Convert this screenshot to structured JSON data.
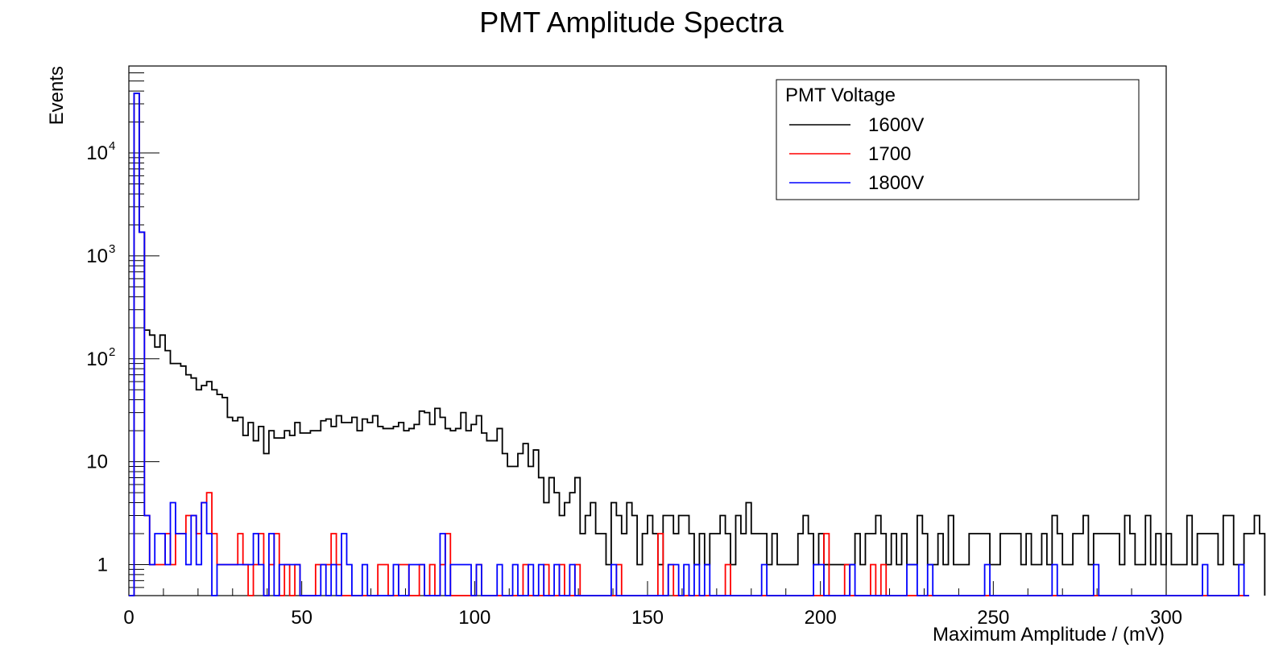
{
  "chart_data": {
    "type": "histogram",
    "title": "PMT Amplitude Spectra",
    "xlabel": "Maximum Amplitude / (mV)",
    "ylabel": "Events",
    "xlim": [
      0,
      300
    ],
    "ylim": [
      0.5,
      70000
    ],
    "yscale": "log",
    "bin_width": 1.5,
    "x_ticks": [
      "0",
      "50",
      "100",
      "150",
      "200",
      "250",
      "300"
    ],
    "y_ticks": [
      {
        "value": 1,
        "base": "1",
        "exp": ""
      },
      {
        "value": 10,
        "base": "10",
        "exp": ""
      },
      {
        "value": 100,
        "base": "10",
        "exp": "2"
      },
      {
        "value": 1000,
        "base": "10",
        "exp": "3"
      },
      {
        "value": 10000,
        "base": "10",
        "exp": "4"
      }
    ],
    "grid": false,
    "legend": {
      "title": "PMT Voltage",
      "placement": "top-right",
      "entries": [
        "1600V",
        "1700",
        "1800V"
      ]
    },
    "series": [
      {
        "name": "1600V",
        "color": "#000000",
        "values": [
          0,
          38000,
          1700,
          190,
          170,
          130,
          170,
          120,
          90,
          90,
          85,
          70,
          65,
          50,
          55,
          60,
          50,
          45,
          42,
          27,
          25,
          27,
          18,
          24,
          16,
          22,
          12,
          20,
          17,
          17,
          20,
          18,
          24,
          19,
          19,
          20,
          20,
          25,
          26,
          22,
          28,
          24,
          24,
          27,
          20,
          26,
          24,
          28,
          22,
          21,
          21,
          22,
          24,
          20,
          21,
          23,
          31,
          30,
          23,
          33,
          27,
          21,
          20,
          21,
          30,
          20,
          23,
          28,
          19,
          16,
          16,
          21,
          12,
          9,
          9,
          12,
          15,
          9,
          13,
          7,
          4,
          7,
          5,
          3,
          4,
          5,
          7,
          2,
          3,
          4,
          2,
          2,
          1,
          4,
          3,
          2,
          4,
          3,
          1,
          2,
          3,
          2,
          1,
          3,
          3,
          2,
          3,
          3,
          2,
          1,
          2,
          1,
          2,
          2,
          3,
          2,
          1,
          3,
          2,
          4,
          2,
          2,
          2,
          1,
          2,
          1,
          1,
          1,
          1,
          2,
          3,
          2,
          1,
          2,
          1,
          1,
          1,
          1,
          1,
          1,
          2,
          1,
          2,
          2,
          3,
          2,
          1,
          2,
          1,
          2,
          1,
          1,
          3,
          2,
          1,
          1,
          2,
          1,
          3,
          1,
          1,
          1,
          2,
          2,
          2,
          2,
          1,
          1,
          2,
          2,
          2,
          2,
          1,
          2,
          1,
          1,
          2,
          1,
          3,
          2,
          1,
          1,
          2,
          2,
          3,
          1,
          2,
          2,
          2,
          2,
          2,
          1,
          3,
          2,
          1,
          1,
          3,
          1,
          2,
          1,
          2,
          1,
          1,
          1,
          3,
          1,
          2,
          2,
          2,
          2,
          1,
          3,
          3,
          1,
          1,
          2,
          2,
          3,
          2
        ]
      },
      {
        "name": "1700",
        "color": "#ff0000",
        "values": [
          0,
          38000,
          1700,
          3,
          1,
          1,
          1,
          2,
          1,
          2,
          2,
          3,
          3,
          2,
          4,
          5,
          2,
          1,
          1,
          1,
          1,
          2,
          1,
          0,
          1,
          2,
          0,
          1,
          2,
          0,
          1,
          0,
          1,
          0,
          0,
          0,
          1,
          1,
          1,
          2,
          1,
          0,
          0,
          0,
          0,
          0,
          0,
          0,
          1,
          1,
          0,
          0,
          1,
          1,
          0,
          0,
          1,
          0,
          1,
          0,
          1,
          2,
          0,
          0,
          0,
          0,
          0,
          1,
          0,
          0,
          0,
          0,
          0,
          0,
          0,
          0,
          1,
          0,
          0,
          0,
          1,
          0,
          0,
          1,
          0,
          0,
          1,
          0,
          0,
          0,
          0,
          0,
          0,
          0,
          1,
          0,
          0,
          0,
          0,
          0,
          0,
          0,
          2,
          0,
          1,
          0,
          0,
          0,
          0,
          0,
          0,
          0,
          0,
          0,
          0,
          1,
          0,
          0,
          0,
          0,
          0,
          0,
          0,
          0,
          0,
          0,
          0,
          0,
          0,
          0,
          0,
          0,
          0,
          0,
          2,
          0,
          0,
          0,
          1,
          0,
          0,
          0,
          0,
          1,
          0,
          1,
          0,
          0,
          0,
          0,
          0,
          0,
          0,
          0,
          0,
          0,
          0,
          0,
          0,
          0,
          0,
          0,
          0,
          0,
          0,
          0,
          0,
          0,
          0,
          0,
          0,
          0,
          0,
          0,
          0,
          0,
          0,
          0,
          0,
          0,
          0,
          0,
          0,
          0,
          0,
          0,
          0,
          0,
          0,
          0,
          0,
          0,
          0,
          0,
          0,
          0,
          0,
          0,
          0,
          0,
          0,
          0,
          0,
          0,
          0,
          0,
          0,
          0,
          0,
          0,
          0,
          0,
          0,
          0,
          0,
          0
        ]
      },
      {
        "name": "1800V",
        "color": "#0000ff",
        "values": [
          0,
          38000,
          1700,
          3,
          1,
          2,
          2,
          1,
          4,
          2,
          2,
          1,
          3,
          1,
          4,
          2,
          0,
          1,
          1,
          1,
          1,
          1,
          1,
          1,
          2,
          1,
          0,
          2,
          0,
          1,
          1,
          1,
          1,
          0,
          0,
          0,
          0,
          1,
          0,
          1,
          0,
          2,
          1,
          0,
          0,
          1,
          0,
          0,
          0,
          0,
          0,
          1,
          0,
          0,
          1,
          1,
          1,
          0,
          0,
          0,
          2,
          0,
          1,
          1,
          1,
          1,
          0,
          1,
          0,
          0,
          0,
          1,
          0,
          0,
          1,
          0,
          0,
          1,
          0,
          1,
          0,
          0,
          1,
          0,
          0,
          1,
          0,
          0,
          0,
          0,
          0,
          0,
          0,
          1,
          0,
          0,
          0,
          0,
          0,
          0,
          0,
          0,
          0,
          0,
          1,
          1,
          0,
          1,
          0,
          1,
          0,
          1,
          0,
          0,
          0,
          0,
          0,
          0,
          0,
          0,
          0,
          0,
          1,
          0,
          0,
          0,
          0,
          0,
          0,
          0,
          0,
          0,
          1,
          1,
          0,
          0,
          0,
          0,
          0,
          1,
          0,
          0,
          0,
          0,
          0,
          0,
          0,
          0,
          0,
          0,
          1,
          1,
          0,
          0,
          1,
          0,
          0,
          0,
          0,
          0,
          0,
          0,
          0,
          0,
          0,
          1,
          0,
          0,
          0,
          0,
          0,
          0,
          0,
          0,
          0,
          0,
          0,
          0,
          1,
          0,
          0,
          0,
          0,
          0,
          0,
          0,
          1,
          0,
          0,
          0,
          0,
          0,
          0,
          0,
          0,
          0,
          0,
          0,
          0,
          0,
          0,
          0,
          0,
          0,
          0,
          0,
          0,
          1,
          0,
          0,
          0,
          0,
          0,
          0,
          1,
          0
        ]
      }
    ]
  }
}
